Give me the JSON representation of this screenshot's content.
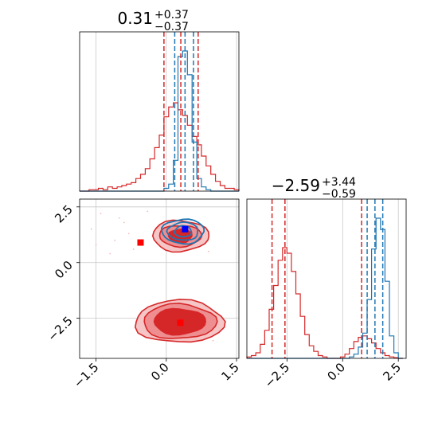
{
  "colors": {
    "red": "#d62728",
    "blue": "#1f77b4",
    "grid": "#c8c8c8",
    "marker_blue": "#0000ff",
    "marker_red": "#ff0000",
    "fill_dark": "#d62728",
    "fill_mid": "#ee8e90",
    "fill_light": "#f6c5c6"
  },
  "chart_data": [
    {
      "type": "histogram",
      "panel": "top-left",
      "title_value": "0.31",
      "title_plus": "+0.37",
      "title_minus": "−0.37",
      "xlim": [
        -1.85,
        1.55
      ],
      "grid": true,
      "x_bins": [
        -1.8,
        -1.7,
        -1.6,
        -1.5,
        -1.4,
        -1.3,
        -1.2,
        -1.1,
        -1.0,
        -0.9,
        -0.8,
        -0.7,
        -0.6,
        -0.5,
        -0.4,
        -0.3,
        -0.2,
        -0.1,
        0.0,
        0.1,
        0.2,
        0.3,
        0.4,
        0.5,
        0.6,
        0.7,
        0.8,
        0.9,
        1.0,
        1.1,
        1.2,
        1.3,
        1.4,
        1.5
      ],
      "series": [
        {
          "color": "red",
          "values": [
            0,
            0,
            0.01,
            0.01,
            0.02,
            0.01,
            0.03,
            0.02,
            0.03,
            0.04,
            0.05,
            0.06,
            0.09,
            0.12,
            0.16,
            0.23,
            0.31,
            0.4,
            0.53,
            0.6,
            0.63,
            0.58,
            0.54,
            0.47,
            0.39,
            0.33,
            0.25,
            0.18,
            0.12,
            0.07,
            0.04,
            0.02,
            0.02,
            0.01
          ]
        },
        {
          "color": "blue",
          "values": [
            0,
            0,
            0,
            0,
            0,
            0,
            0,
            0,
            0,
            0,
            0,
            0,
            0,
            0,
            0,
            0,
            0,
            0,
            0.02,
            0.05,
            0.22,
            0.96,
            1.0,
            0.83,
            0.35,
            0.09,
            0.03,
            0.01,
            0,
            0,
            0,
            0,
            0,
            0
          ]
        }
      ],
      "quantile_lines": [
        {
          "color": "red",
          "x": [
            -0.05,
            0.31,
            0.68
          ]
        },
        {
          "color": "blue",
          "x": [
            0.18,
            0.4,
            0.58
          ]
        }
      ]
    },
    {
      "type": "contour",
      "panel": "bottom-left",
      "xlim": [
        -1.85,
        1.55
      ],
      "ylim": [
        -4.3,
        2.85
      ],
      "xticks": [
        -1.5,
        0.0,
        1.5
      ],
      "xtick_labels": [
        "−1.5",
        "0.0",
        "1.5"
      ],
      "yticks": [
        2.5,
        0.0,
        -2.5
      ],
      "ytick_labels": [
        "2.5",
        "0.0",
        "−2.5"
      ],
      "grid": true,
      "red_modes": [
        {
          "center": [
            0.28,
            -2.65
          ],
          "levels": [
            [
              0.95,
              0.95
            ],
            [
              0.78,
              0.78
            ],
            [
              0.55,
              0.58
            ]
          ]
        },
        {
          "center": [
            0.3,
            1.2
          ],
          "levels": [
            [
              0.6,
              0.7
            ],
            [
              0.45,
              0.48
            ],
            [
              0.25,
              0.3
            ]
          ]
        }
      ],
      "blue_mode": {
        "center": [
          0.36,
          1.4
        ],
        "levels": [
          [
            0.45,
            0.55
          ],
          [
            0.33,
            0.4
          ],
          [
            0.18,
            0.25
          ]
        ]
      },
      "markers": [
        {
          "color": "marker_blue",
          "x": 0.4,
          "y": 1.5
        },
        {
          "color": "marker_red",
          "x": -0.55,
          "y": 0.9
        },
        {
          "color": "marker_red",
          "x": 0.3,
          "y": -2.7
        }
      ]
    },
    {
      "type": "histogram",
      "panel": "bottom-right",
      "title_value": "−2.59",
      "title_plus": "+3.44",
      "title_minus": "−0.59",
      "xlim": [
        -4.3,
        2.85
      ],
      "xticks": [
        -2.5,
        0.0,
        2.5
      ],
      "xtick_labels": [
        "−2.5",
        "0.0",
        "2.5"
      ],
      "grid": true,
      "x_bins": [
        -4.2,
        -4.0,
        -3.8,
        -3.6,
        -3.4,
        -3.2,
        -3.0,
        -2.8,
        -2.6,
        -2.4,
        -2.2,
        -2.0,
        -1.8,
        -1.6,
        -1.4,
        -1.2,
        -1.0,
        -0.8,
        -0.6,
        -0.4,
        -0.2,
        0.0,
        0.2,
        0.4,
        0.6,
        0.8,
        1.0,
        1.2,
        1.4,
        1.6,
        1.8,
        2.0,
        2.2,
        2.4,
        2.6
      ],
      "series": [
        {
          "color": "red",
          "values": [
            0.01,
            0.02,
            0.04,
            0.1,
            0.2,
            0.35,
            0.52,
            0.7,
            0.79,
            0.75,
            0.62,
            0.46,
            0.3,
            0.17,
            0.09,
            0.05,
            0.02,
            0.01,
            0,
            0,
            0,
            0.01,
            0.03,
            0.07,
            0.12,
            0.15,
            0.16,
            0.14,
            0.11,
            0.07,
            0.04,
            0.02,
            0.01,
            0.005,
            0
          ]
        },
        {
          "color": "blue",
          "values": [
            0,
            0,
            0,
            0,
            0,
            0,
            0,
            0,
            0,
            0,
            0,
            0,
            0,
            0,
            0,
            0,
            0,
            0,
            0,
            0,
            0,
            0,
            0,
            0.01,
            0.03,
            0.08,
            0.18,
            0.42,
            0.78,
            1.0,
            0.92,
            0.55,
            0.16,
            0.04,
            0
          ]
        }
      ],
      "quantile_lines": [
        {
          "color": "red",
          "x": [
            -3.17,
            -2.59,
            0.85
          ]
        },
        {
          "color": "blue",
          "x": [
            1.1,
            1.45,
            1.8
          ]
        }
      ]
    }
  ]
}
